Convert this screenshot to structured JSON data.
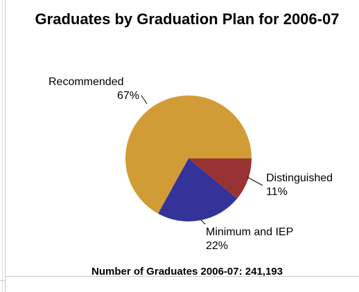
{
  "chart_data": {
    "type": "pie",
    "title": "Graduates by Graduation Plan for 2006-07",
    "slices": [
      {
        "label": "Recommended",
        "pct_text": "67%",
        "value": 67,
        "color": "#d19c35"
      },
      {
        "label": "Distinguished",
        "pct_text": "11%",
        "value": 11,
        "color": "#993333"
      },
      {
        "label": "Minimum and IEP",
        "pct_text": "22%",
        "value": 22,
        "color": "#333399"
      }
    ],
    "footer": "Number of Graduates 2006-07:  241,193"
  }
}
